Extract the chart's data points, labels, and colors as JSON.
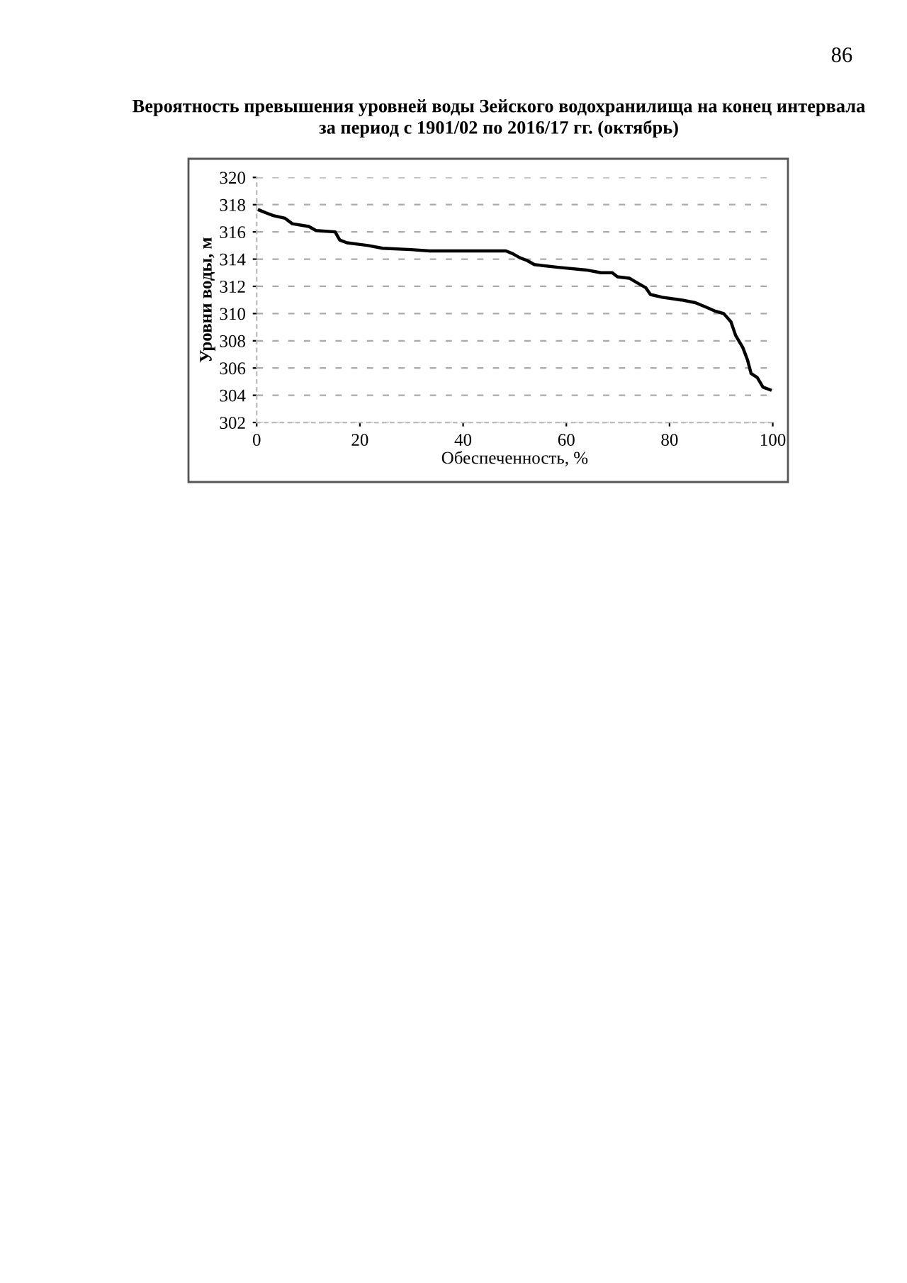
{
  "chart_data": {
    "type": "line",
    "title": "Вероятность превышения уровней воды Зейского водохранилища на конец интервала\nза период с 1901/02 по 2016/17 гг. (октябрь)",
    "xlabel": "Обеспеченность, %",
    "ylabel": "Уровни воды, м",
    "annotations": [
      "86"
    ],
    "series": [
      {
        "color": "#000000",
        "x": [
          0.5,
          1.8,
          3.2,
          5.5,
          6.9,
          10.1,
          11.5,
          15.2,
          16.1,
          17.5,
          21.6,
          24.4,
          29.9,
          33.5,
          48.3,
          49.6,
          51.0,
          52.4,
          53.8,
          58.4,
          63.9,
          66.7,
          68.9,
          69.9,
          72.2,
          74.0,
          75.4,
          76.3,
          78.6,
          82.3,
          85.0,
          86.9,
          88.7,
          90.5,
          91.9,
          92.8,
          94.2,
          95.1,
          95.8,
          97.0,
          98.1,
          99.5
        ],
        "values": [
          317.6,
          317.4,
          317.2,
          317.0,
          316.6,
          316.4,
          316.1,
          316.0,
          315.4,
          315.2,
          315.0,
          314.8,
          314.7,
          314.6,
          314.6,
          314.4,
          314.1,
          313.9,
          313.6,
          313.4,
          313.2,
          313.0,
          313.0,
          312.7,
          312.6,
          312.2,
          311.9,
          311.4,
          311.2,
          311.0,
          310.8,
          310.5,
          310.2,
          310.0,
          309.4,
          308.4,
          307.5,
          306.6,
          305.6,
          305.3,
          304.6,
          304.4
        ]
      }
    ],
    "xlim": [
      0,
      100
    ],
    "xticks": [
      0,
      20,
      40,
      60,
      80,
      100
    ],
    "ylim": [
      302,
      320
    ],
    "yticks": [
      302,
      304,
      306,
      308,
      310,
      312,
      314,
      316,
      318,
      320
    ],
    "grid": "y",
    "legend": false,
    "marker": "none",
    "line_style": "solid"
  }
}
